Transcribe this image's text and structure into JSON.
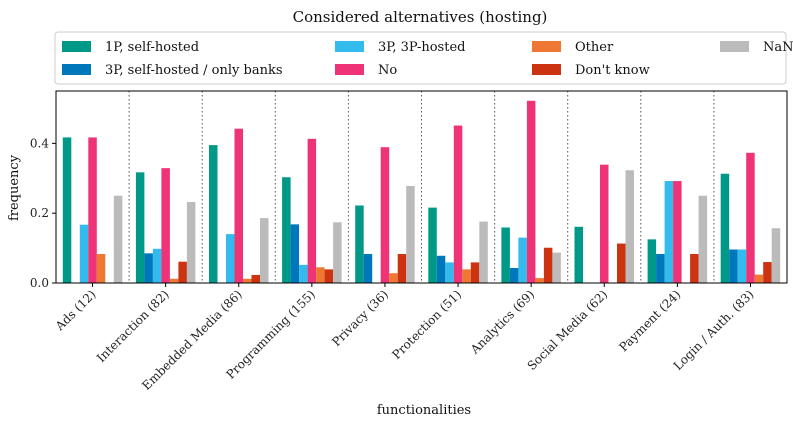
{
  "chart_data": {
    "type": "bar",
    "title": "Considered alternatives (hosting)",
    "xlabel": "functionalities",
    "ylabel": "frequency",
    "ylim": [
      0,
      0.55
    ],
    "yticks": [
      "0.0",
      "0.2",
      "0.4"
    ],
    "ytick_values": [
      0.0,
      0.2,
      0.4
    ],
    "grid": false,
    "category_separators": "dotted",
    "legend_position": "top",
    "categories": [
      "Ads (12)",
      "Interaction (82)",
      "Embedded Media (86)",
      "Programming (155)",
      "Privacy (36)",
      "Protection (51)",
      "Analytics (69)",
      "Social Media (62)",
      "Payment (24)",
      "Login / Auth. (83)"
    ],
    "series": [
      {
        "name": "1P, self-hosted",
        "color": "#009988",
        "values": [
          0.417,
          0.317,
          0.395,
          0.303,
          0.222,
          0.216,
          0.159,
          0.161,
          0.125,
          0.313
        ]
      },
      {
        "name": "3P, self-hosted / only banks",
        "color": "#0077BB",
        "values": [
          0.0,
          0.085,
          0.0,
          0.168,
          0.083,
          0.078,
          0.043,
          0.0,
          0.083,
          0.096
        ]
      },
      {
        "name": "3P, 3P-hosted",
        "color": "#33BBEE",
        "values": [
          0.167,
          0.098,
          0.14,
          0.052,
          0.0,
          0.059,
          0.13,
          0.0,
          0.292,
          0.096
        ]
      },
      {
        "name": "No",
        "color": "#EE3377",
        "values": [
          0.417,
          0.329,
          0.442,
          0.413,
          0.389,
          0.451,
          0.522,
          0.339,
          0.292,
          0.373
        ]
      },
      {
        "name": "Other",
        "color": "#EE7733",
        "values": [
          0.083,
          0.012,
          0.012,
          0.045,
          0.028,
          0.039,
          0.014,
          0.0,
          0.0,
          0.024
        ]
      },
      {
        "name": "Don't know",
        "color": "#CC3311",
        "values": [
          0.0,
          0.061,
          0.023,
          0.039,
          0.083,
          0.059,
          0.101,
          0.113,
          0.083,
          0.06
        ]
      },
      {
        "name": "NaN",
        "color": "#BBBBBB",
        "values": [
          0.25,
          0.232,
          0.186,
          0.174,
          0.278,
          0.176,
          0.087,
          0.323,
          0.25,
          0.157
        ]
      }
    ]
  }
}
